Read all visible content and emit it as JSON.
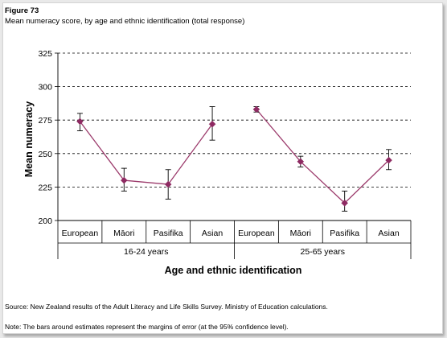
{
  "figure_label": "Figure 73",
  "caption": "Mean numeracy score, by age and ethnic identification (total response)",
  "source": "Source:  New Zealand results of the Adult Literacy and Life Skills Survey.  Ministry of Education calculations.",
  "note": "Note:  The bars around estimates represent the margins of error (at the 95% confidence level).",
  "colors": {
    "line": "#9b3a6b",
    "marker": "#8e2a62",
    "error_bar": "#000000",
    "grid": "#000000"
  },
  "chart_data": {
    "type": "line",
    "title": "",
    "ylabel": "Mean numeracy",
    "xlabel": "Age and ethnic identification",
    "ylim": [
      200,
      325
    ],
    "yticks": [
      200,
      225,
      250,
      275,
      300,
      325
    ],
    "grid": "horizontal-dashed",
    "marker": "diamond",
    "error_bars": true,
    "groups": [
      {
        "label": "16-24 years",
        "categories": [
          "European",
          "Māori",
          "Pasifika",
          "Asian"
        ],
        "values": [
          274,
          230,
          227,
          272
        ],
        "error_low": [
          267,
          222,
          216,
          260
        ],
        "error_high": [
          280,
          239,
          238,
          285
        ]
      },
      {
        "label": "25-65 years",
        "categories": [
          "European",
          "Māori",
          "Pasifika",
          "Asian"
        ],
        "values": [
          283,
          244,
          213,
          245
        ],
        "error_low": [
          281,
          240,
          207,
          238
        ],
        "error_high": [
          285,
          248,
          222,
          253
        ]
      }
    ]
  }
}
